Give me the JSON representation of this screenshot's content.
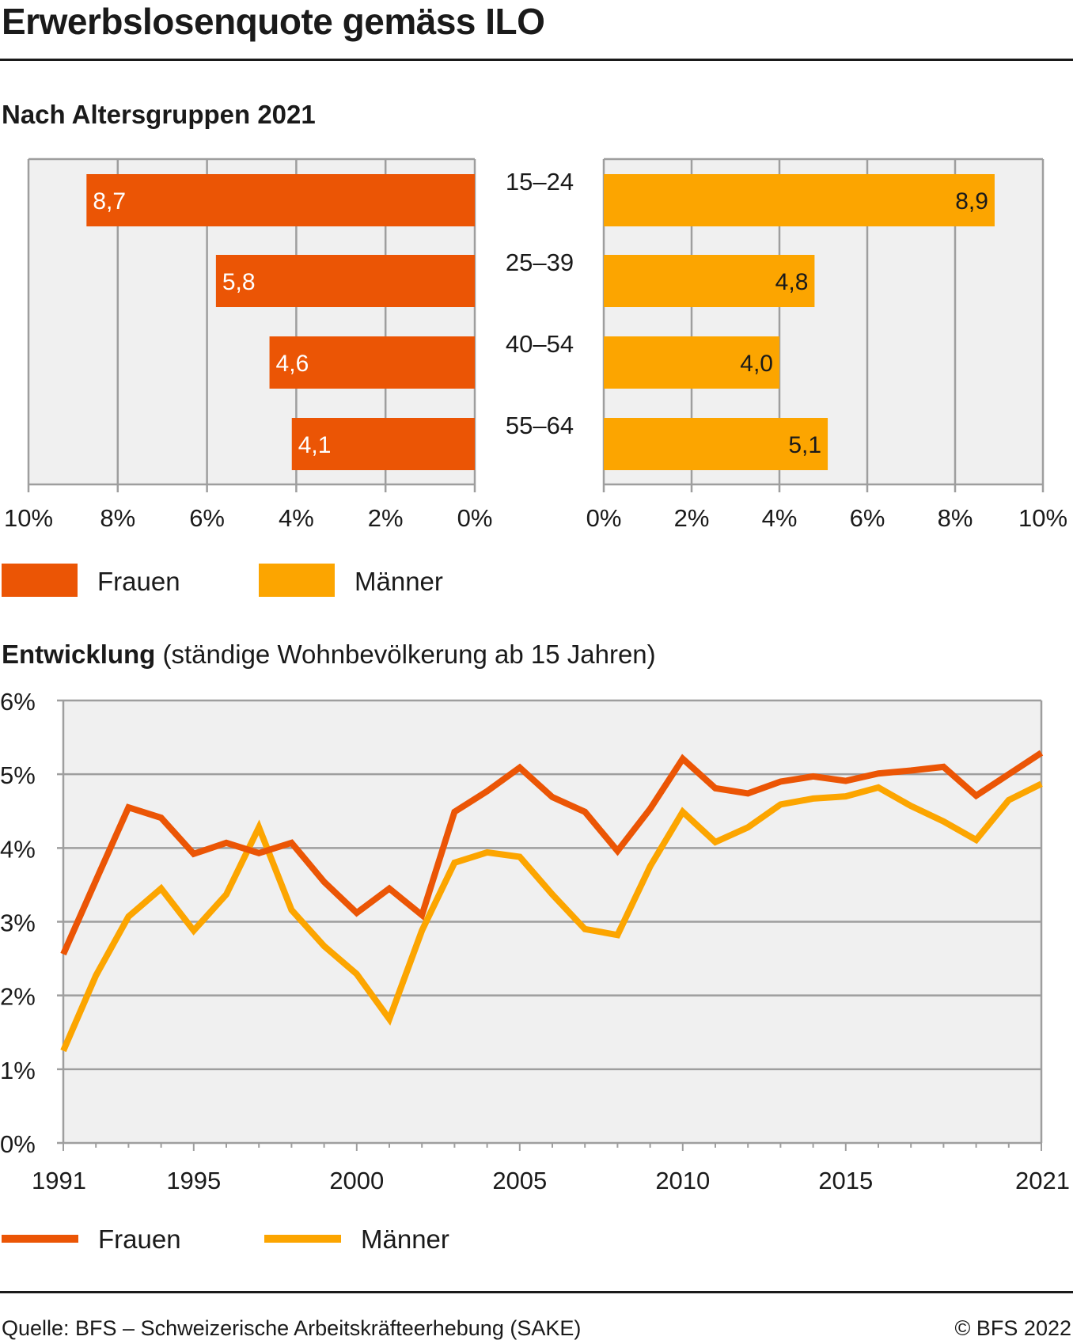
{
  "title": "Erwerbslosenquote gemäss ILO",
  "colors": {
    "frauen": "#EB5505",
    "maenner": "#FCA500",
    "plot_bg": "#F0F0F0",
    "grid": "#9E9E9E",
    "text": "#1a1a1a"
  },
  "legend": [
    {
      "label": "Frauen",
      "color": "#EB5505"
    },
    {
      "label": "Männer",
      "color": "#FCA500"
    }
  ],
  "footer": {
    "source": "Quelle: BFS – Schweizerische Arbeitskräfteerhebung (SAKE)",
    "copyright": "© BFS 2022"
  },
  "chart_data": [
    {
      "type": "bar",
      "title": "Nach Altersgruppen 2021",
      "orientation": "horizontal-butterfly",
      "categories": [
        "15–24",
        "25–39",
        "40–54",
        "55–64"
      ],
      "series": [
        {
          "name": "Frauen",
          "values": [
            8.7,
            5.8,
            4.6,
            4.1
          ],
          "labels": [
            "8,7",
            "5,8",
            "4,6",
            "4,1"
          ]
        },
        {
          "name": "Männer",
          "values": [
            8.9,
            4.8,
            4.0,
            5.1
          ],
          "labels": [
            "8,9",
            "4,8",
            "4,0",
            "5,1"
          ]
        }
      ],
      "xlim": [
        0,
        10
      ],
      "ticks": [
        0,
        2,
        4,
        6,
        8,
        10
      ],
      "tick_labels": [
        "0%",
        "2%",
        "4%",
        "6%",
        "8%",
        "10%"
      ],
      "grid": true,
      "legend_position": "bottom-left"
    },
    {
      "type": "line",
      "title": "Entwicklung",
      "subtitle": "(ständige Wohnbevölkerung ab 15 Jahren)",
      "x": [
        1991,
        1992,
        1993,
        1994,
        1995,
        1996,
        1997,
        1998,
        1999,
        2000,
        2001,
        2002,
        2003,
        2004,
        2005,
        2006,
        2007,
        2008,
        2009,
        2010,
        2011,
        2012,
        2013,
        2014,
        2015,
        2016,
        2017,
        2018,
        2019,
        2020,
        2021
      ],
      "series": [
        {
          "name": "Frauen",
          "values": [
            2.56,
            3.56,
            4.55,
            4.41,
            3.92,
            4.07,
            3.93,
            4.07,
            3.54,
            3.12,
            3.45,
            3.09,
            4.49,
            4.77,
            5.09,
            4.69,
            4.49,
            3.96,
            4.53,
            5.21,
            4.81,
            4.74,
            4.9,
            4.97,
            4.91,
            5.01,
            5.05,
            5.1,
            4.71,
            5.0,
            5.29
          ]
        },
        {
          "name": "Männer",
          "values": [
            1.25,
            2.27,
            3.07,
            3.45,
            2.88,
            3.37,
            4.28,
            3.16,
            2.67,
            2.29,
            1.68,
            2.88,
            3.8,
            3.94,
            3.88,
            3.37,
            2.9,
            2.82,
            3.75,
            4.49,
            4.08,
            4.28,
            4.59,
            4.67,
            4.7,
            4.82,
            4.57,
            4.36,
            4.11,
            4.65,
            4.87
          ]
        }
      ],
      "xlim": [
        1991,
        2021
      ],
      "ylim": [
        0,
        6
      ],
      "x_ticks": [
        1991,
        1995,
        2000,
        2005,
        2010,
        2015,
        2021
      ],
      "x_tick_labels": [
        "1991",
        "1995",
        "2000",
        "2005",
        "2010",
        "2015",
        "2021"
      ],
      "y_ticks": [
        0,
        1,
        2,
        3,
        4,
        5,
        6
      ],
      "y_tick_labels": [
        "0%",
        "1%",
        "2%",
        "3%",
        "4%",
        "5%",
        "6%"
      ],
      "xlabel": "",
      "ylabel": "",
      "grid": true,
      "legend_position": "bottom-left"
    }
  ]
}
